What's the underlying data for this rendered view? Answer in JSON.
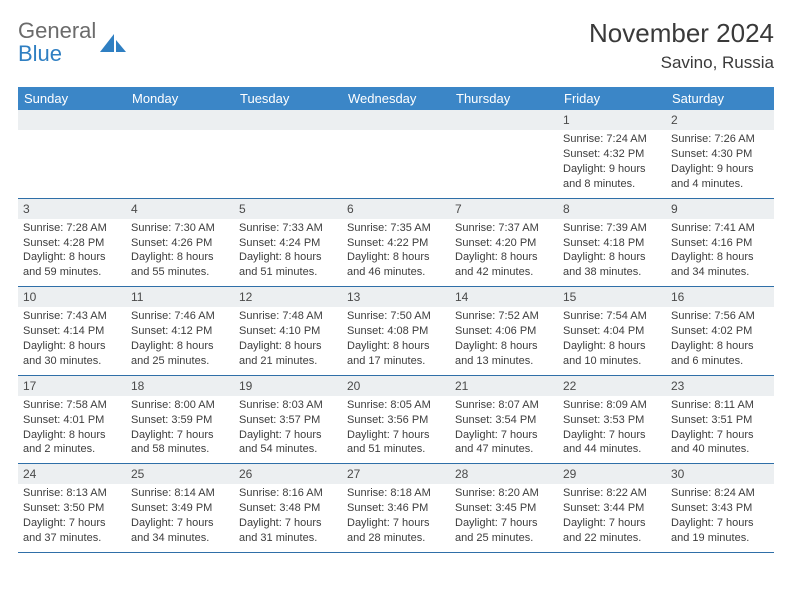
{
  "brand": {
    "line1": "General",
    "line2": "Blue"
  },
  "title": "November 2024",
  "location": "Savino, Russia",
  "colors": {
    "header_bg": "#3b86c7",
    "header_text": "#ffffff",
    "rule": "#2f6fa8",
    "daynum_bg": "#eceff1",
    "text": "#3d3d3d",
    "logo_gray": "#6b6b6b",
    "logo_blue": "#2f7fc2"
  },
  "days_of_week": [
    "Sunday",
    "Monday",
    "Tuesday",
    "Wednesday",
    "Thursday",
    "Friday",
    "Saturday"
  ],
  "layout": {
    "leading_blanks": 5,
    "num_days": 30
  },
  "days": {
    "1": {
      "sunrise": "7:24 AM",
      "sunset": "4:32 PM",
      "daylight": "9 hours and 8 minutes."
    },
    "2": {
      "sunrise": "7:26 AM",
      "sunset": "4:30 PM",
      "daylight": "9 hours and 4 minutes."
    },
    "3": {
      "sunrise": "7:28 AM",
      "sunset": "4:28 PM",
      "daylight": "8 hours and 59 minutes."
    },
    "4": {
      "sunrise": "7:30 AM",
      "sunset": "4:26 PM",
      "daylight": "8 hours and 55 minutes."
    },
    "5": {
      "sunrise": "7:33 AM",
      "sunset": "4:24 PM",
      "daylight": "8 hours and 51 minutes."
    },
    "6": {
      "sunrise": "7:35 AM",
      "sunset": "4:22 PM",
      "daylight": "8 hours and 46 minutes."
    },
    "7": {
      "sunrise": "7:37 AM",
      "sunset": "4:20 PM",
      "daylight": "8 hours and 42 minutes."
    },
    "8": {
      "sunrise": "7:39 AM",
      "sunset": "4:18 PM",
      "daylight": "8 hours and 38 minutes."
    },
    "9": {
      "sunrise": "7:41 AM",
      "sunset": "4:16 PM",
      "daylight": "8 hours and 34 minutes."
    },
    "10": {
      "sunrise": "7:43 AM",
      "sunset": "4:14 PM",
      "daylight": "8 hours and 30 minutes."
    },
    "11": {
      "sunrise": "7:46 AM",
      "sunset": "4:12 PM",
      "daylight": "8 hours and 25 minutes."
    },
    "12": {
      "sunrise": "7:48 AM",
      "sunset": "4:10 PM",
      "daylight": "8 hours and 21 minutes."
    },
    "13": {
      "sunrise": "7:50 AM",
      "sunset": "4:08 PM",
      "daylight": "8 hours and 17 minutes."
    },
    "14": {
      "sunrise": "7:52 AM",
      "sunset": "4:06 PM",
      "daylight": "8 hours and 13 minutes."
    },
    "15": {
      "sunrise": "7:54 AM",
      "sunset": "4:04 PM",
      "daylight": "8 hours and 10 minutes."
    },
    "16": {
      "sunrise": "7:56 AM",
      "sunset": "4:02 PM",
      "daylight": "8 hours and 6 minutes."
    },
    "17": {
      "sunrise": "7:58 AM",
      "sunset": "4:01 PM",
      "daylight": "8 hours and 2 minutes."
    },
    "18": {
      "sunrise": "8:00 AM",
      "sunset": "3:59 PM",
      "daylight": "7 hours and 58 minutes."
    },
    "19": {
      "sunrise": "8:03 AM",
      "sunset": "3:57 PM",
      "daylight": "7 hours and 54 minutes."
    },
    "20": {
      "sunrise": "8:05 AM",
      "sunset": "3:56 PM",
      "daylight": "7 hours and 51 minutes."
    },
    "21": {
      "sunrise": "8:07 AM",
      "sunset": "3:54 PM",
      "daylight": "7 hours and 47 minutes."
    },
    "22": {
      "sunrise": "8:09 AM",
      "sunset": "3:53 PM",
      "daylight": "7 hours and 44 minutes."
    },
    "23": {
      "sunrise": "8:11 AM",
      "sunset": "3:51 PM",
      "daylight": "7 hours and 40 minutes."
    },
    "24": {
      "sunrise": "8:13 AM",
      "sunset": "3:50 PM",
      "daylight": "7 hours and 37 minutes."
    },
    "25": {
      "sunrise": "8:14 AM",
      "sunset": "3:49 PM",
      "daylight": "7 hours and 34 minutes."
    },
    "26": {
      "sunrise": "8:16 AM",
      "sunset": "3:48 PM",
      "daylight": "7 hours and 31 minutes."
    },
    "27": {
      "sunrise": "8:18 AM",
      "sunset": "3:46 PM",
      "daylight": "7 hours and 28 minutes."
    },
    "28": {
      "sunrise": "8:20 AM",
      "sunset": "3:45 PM",
      "daylight": "7 hours and 25 minutes."
    },
    "29": {
      "sunrise": "8:22 AM",
      "sunset": "3:44 PM",
      "daylight": "7 hours and 22 minutes."
    },
    "30": {
      "sunrise": "8:24 AM",
      "sunset": "3:43 PM",
      "daylight": "7 hours and 19 minutes."
    }
  },
  "labels": {
    "sunrise": "Sunrise:",
    "sunset": "Sunset:",
    "daylight": "Daylight:"
  }
}
